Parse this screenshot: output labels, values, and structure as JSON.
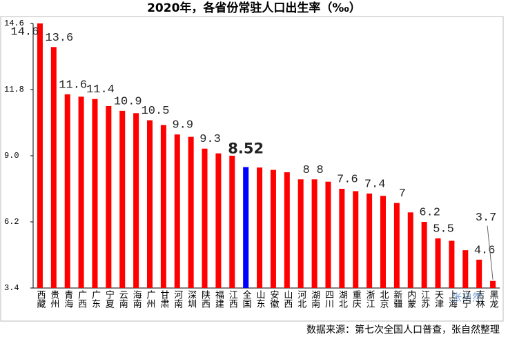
{
  "chart_data": {
    "type": "bar",
    "title": "2020年，各省份常驻人口出生率（‰）",
    "source": "数据来源：第七次全国人口普查，张自然整理",
    "watermark": "张自然",
    "categories": [
      "西藏",
      "贵州",
      "青海",
      "广西",
      "广东",
      "宁夏",
      "云南",
      "海南",
      "广州",
      "甘肃",
      "河南",
      "深圳",
      "陕西",
      "福建",
      "江西",
      "全国",
      "山东",
      "安徽",
      "山西",
      "河北",
      "湖南",
      "四川",
      "湖北",
      "重庆",
      "浙江",
      "北京",
      "新疆",
      "内蒙",
      "江苏",
      "天津",
      "上海",
      "辽宁",
      "吉林",
      "黑龙"
    ],
    "values": [
      14.6,
      13.6,
      11.6,
      11.5,
      11.4,
      11.1,
      10.9,
      10.8,
      10.5,
      10.3,
      9.9,
      9.8,
      9.3,
      9.1,
      9.0,
      8.52,
      8.5,
      8.4,
      8.3,
      8,
      8,
      7.9,
      7.6,
      7.5,
      7.4,
      7.3,
      7,
      6.6,
      6.2,
      5.5,
      5.4,
      5.0,
      4.6,
      3.7
    ],
    "value_labels": [
      "14.6",
      "13.6",
      "11.6",
      null,
      "11.4",
      null,
      "10.9",
      null,
      "10.5",
      null,
      "9.9",
      null,
      "9.3",
      null,
      null,
      "8.52",
      null,
      null,
      null,
      "8",
      "8",
      null,
      "7.6",
      null,
      "7.4",
      null,
      "7",
      null,
      "6.2",
      "5.5",
      null,
      null,
      "4.6",
      "3.7"
    ],
    "colors": [
      "#ff0000",
      "#ff0000",
      "#ff0000",
      "#ff0000",
      "#ff0000",
      "#ff0000",
      "#ff0000",
      "#ff0000",
      "#ff0000",
      "#ff0000",
      "#ff0000",
      "#ff0000",
      "#ff0000",
      "#ff0000",
      "#ff0000",
      "#0000ff",
      "#ff0000",
      "#ff0000",
      "#ff0000",
      "#ff0000",
      "#ff0000",
      "#ff0000",
      "#ff0000",
      "#ff0000",
      "#ff0000",
      "#ff0000",
      "#ff0000",
      "#ff0000",
      "#ff0000",
      "#ff0000",
      "#ff0000",
      "#ff0000",
      "#ff0000",
      "#ff0000"
    ],
    "ylim": [
      3.4,
      14.6
    ],
    "yticks": [
      3.4,
      6.2,
      {
        "value": 9,
        "label": "9.0"
      },
      11.8,
      14.6
    ],
    "grid": false
  }
}
